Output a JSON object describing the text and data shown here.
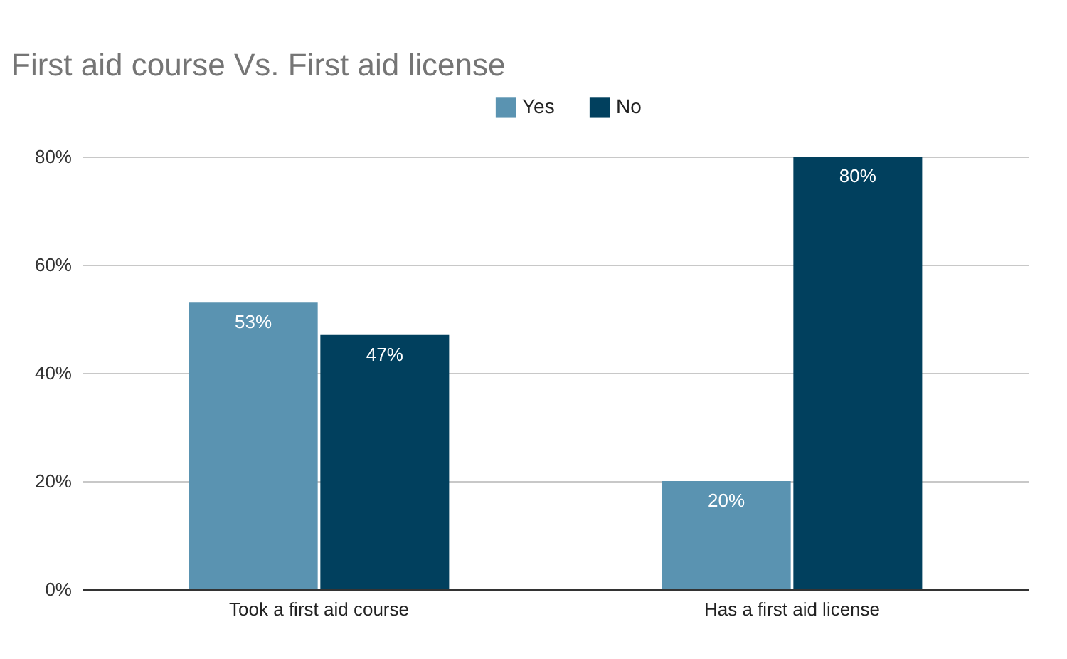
{
  "chart_data": {
    "type": "bar",
    "title": "First aid course Vs. First aid license",
    "categories": [
      "Took a first aid course",
      "Has a first aid license"
    ],
    "series": [
      {
        "name": "Yes",
        "color": "#5a93b1",
        "values": [
          53,
          20
        ],
        "value_labels": [
          "53%",
          "20%"
        ]
      },
      {
        "name": "No",
        "color": "#01405e",
        "values": [
          47,
          80
        ],
        "value_labels": [
          "47%",
          "80%"
        ]
      }
    ],
    "ylim": [
      0,
      80
    ],
    "yticks": [
      {
        "value": 0,
        "label": "0%"
      },
      {
        "value": 20,
        "label": "20%"
      },
      {
        "value": 40,
        "label": "40%"
      },
      {
        "value": 60,
        "label": "60%"
      },
      {
        "value": 80,
        "label": "80%"
      }
    ],
    "grid": "y",
    "legend": "top"
  }
}
